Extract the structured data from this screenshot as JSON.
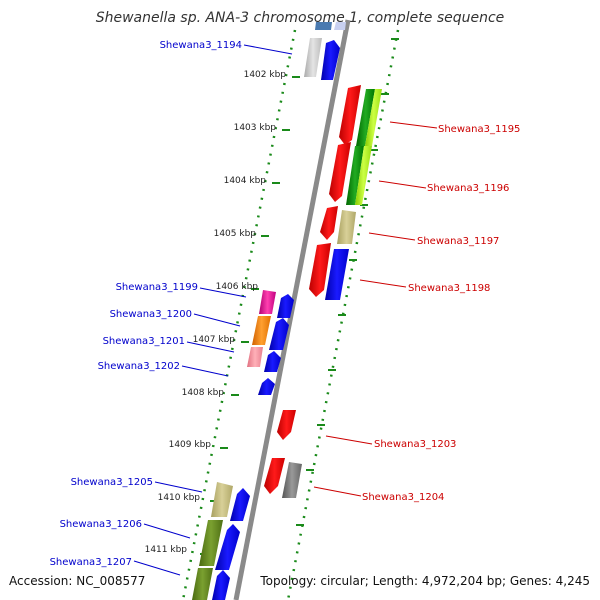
{
  "title": "Shewanella sp. ANA-3 chromosome 1, complete sequence",
  "accession": "Accession: NC_008577",
  "topology": "Topology: circular; Length: 4,972,204 bp; Genes: 4,245",
  "tick_labels": [
    "1402 kbp",
    "1403 kbp",
    "1404 kbp",
    "1405 kbp",
    "1406 kbp",
    "1407 kbp",
    "1408 kbp",
    "1409 kbp",
    "1410 kbp",
    "1411 kbp"
  ],
  "left_genes": [
    "Shewana3_1194",
    "Shewana3_1199",
    "Shewana3_1200",
    "Shewana3_1201",
    "Shewana3_1202",
    "Shewana3_1205",
    "Shewana3_1206",
    "Shewana3_1207"
  ],
  "right_genes": [
    "Shewana3_1195",
    "Shewana3_1196",
    "Shewana3_1197",
    "Shewana3_1198",
    "Shewana3_1203",
    "Shewana3_1204"
  ],
  "colors": {
    "backbone": "#8a8a8a",
    "left_label": "#0000cc",
    "right_label": "#cc0000",
    "ruler": "#1a8a1a"
  }
}
